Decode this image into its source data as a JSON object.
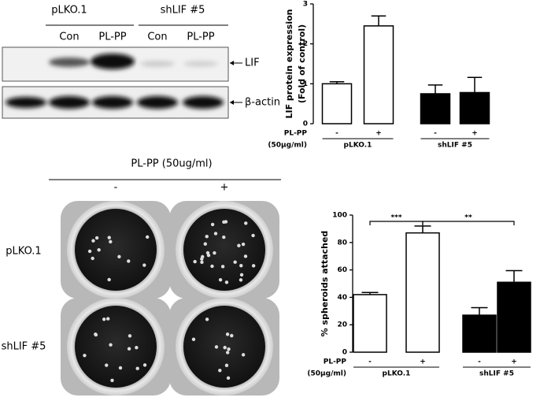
{
  "blot": {
    "groups": [
      "pLKO.1",
      "shLIF #5"
    ],
    "lanes": [
      "Con",
      "PL-PP",
      "Con",
      "PL-PP"
    ],
    "bands": [
      "LIF",
      "β-actin"
    ]
  },
  "wells": {
    "title": "PL-PP (50ug/ml)",
    "columns": [
      "-",
      "+"
    ],
    "rows": [
      "pLKO.1",
      "shLIF #5"
    ]
  },
  "chart_data": [
    {
      "type": "bar",
      "ylabel": [
        "LIF protein expression",
        "(Fold of control)"
      ],
      "categories": [
        "-",
        "+",
        "-",
        "+"
      ],
      "groups": [
        "pLKO.1",
        "shLIF #5"
      ],
      "row_label": [
        "PL-PP",
        "(50μg/ml)"
      ],
      "values": [
        1.0,
        2.45,
        0.75,
        0.78
      ],
      "errors": [
        0.05,
        0.25,
        0.22,
        0.38
      ],
      "colors": [
        "#ffffff",
        "#ffffff",
        "#000000",
        "#000000"
      ],
      "ylim": [
        0,
        3
      ],
      "yticks": [
        0,
        1,
        2,
        3
      ]
    },
    {
      "type": "bar",
      "ylabel": [
        "% spheroids attached"
      ],
      "categories": [
        "-",
        "+",
        "-",
        "+"
      ],
      "groups": [
        "pLKO.1",
        "shLIF #5"
      ],
      "row_label": [
        "PL-PP",
        "(50μg/ml)"
      ],
      "values": [
        42,
        87,
        27,
        51
      ],
      "errors": [
        1.5,
        5,
        5.5,
        8.5
      ],
      "colors": [
        "#ffffff",
        "#ffffff",
        "#000000",
        "#000000"
      ],
      "ylim": [
        0,
        100
      ],
      "yticks": [
        0,
        20,
        40,
        60,
        80,
        100
      ],
      "annotations": [
        {
          "label": "***",
          "from": 0,
          "to": 1
        },
        {
          "label": "**",
          "from": 1,
          "to": 3
        }
      ]
    }
  ]
}
